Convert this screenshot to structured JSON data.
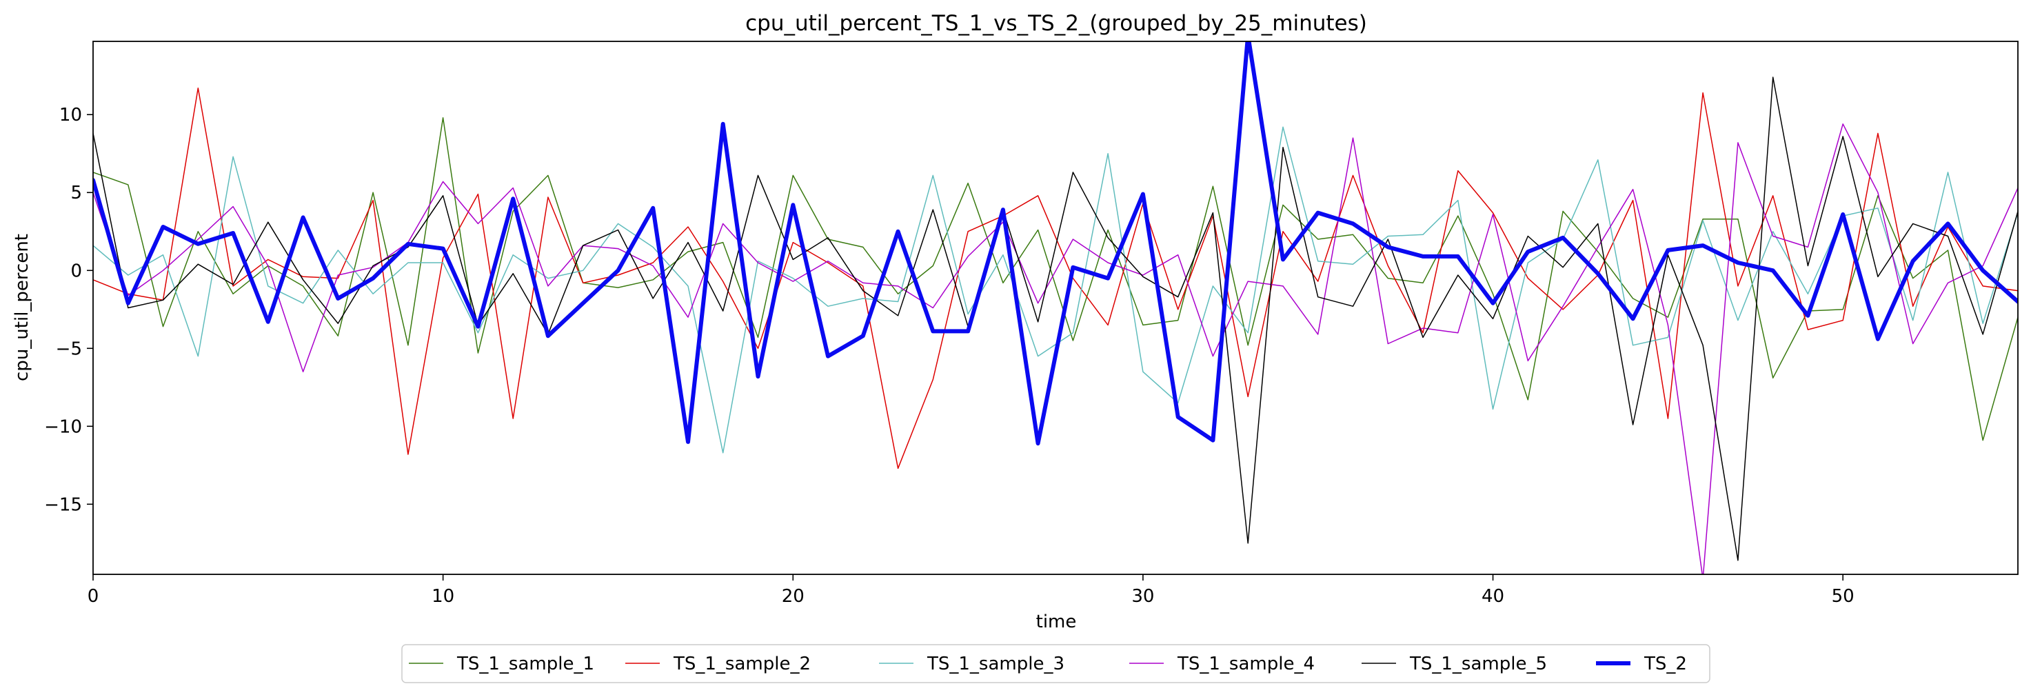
{
  "chart_data": {
    "type": "line",
    "title": "cpu_util_percent_TS_1_vs_TS_2_(grouped_by_25_minutes)",
    "xlabel": "time",
    "ylabel": "cpu_util_percent",
    "xlim": [
      0,
      55
    ],
    "ylim": [
      -19.5,
      14.7
    ],
    "xticks": [
      0,
      10,
      20,
      30,
      40,
      50
    ],
    "xtick_labels": [
      "0",
      "10",
      "20",
      "30",
      "40",
      "50"
    ],
    "yticks": [
      -15,
      -10,
      -5,
      0,
      5,
      10
    ],
    "ytick_labels": [
      "−15",
      "−10",
      "−5",
      "0",
      "5",
      "10"
    ],
    "grid": false,
    "legend": {
      "position": "bottom-center",
      "ncol": 6
    },
    "x": [
      0,
      1,
      2,
      3,
      4,
      5,
      6,
      7,
      8,
      9,
      10,
      11,
      12,
      13,
      14,
      15,
      16,
      17,
      18,
      19,
      20,
      21,
      22,
      23,
      24,
      25,
      26,
      27,
      28,
      29,
      30,
      31,
      32,
      33,
      34,
      35,
      36,
      37,
      38,
      39,
      40,
      41,
      42,
      43,
      44,
      45,
      46,
      47,
      48,
      49,
      50,
      51,
      52,
      53,
      54,
      55
    ],
    "series": [
      {
        "name": "TS_1_sample_1",
        "color": "#3a7a10",
        "width": 1.5,
        "values": [
          6.3,
          5.5,
          -3.6,
          2.5,
          -1.5,
          0.3,
          -1.0,
          -4.2,
          5.0,
          -4.8,
          9.8,
          -5.3,
          3.8,
          6.1,
          -0.8,
          -1.1,
          -0.6,
          1.2,
          1.8,
          -4.3,
          6.1,
          2.0,
          1.5,
          -1.5,
          0.3,
          5.6,
          -0.8,
          2.6,
          -4.5,
          2.6,
          -3.5,
          -3.2,
          5.4,
          -4.8,
          4.2,
          2.0,
          2.3,
          -0.5,
          -0.8,
          3.5,
          -1.5,
          -8.3,
          3.8,
          1.2,
          -1.8,
          -3.0,
          3.3,
          3.3,
          -6.9,
          -2.6,
          -2.5,
          4.8,
          -0.5,
          1.3,
          -10.9,
          -3.0
        ]
      },
      {
        "name": "TS_1_sample_2",
        "color": "#dd0000",
        "width": 1.5,
        "values": [
          -0.6,
          -1.5,
          -1.9,
          11.7,
          -1.0,
          0.7,
          -0.4,
          -0.5,
          4.5,
          -11.8,
          0.8,
          4.9,
          -9.5,
          4.7,
          -0.8,
          -0.3,
          0.5,
          2.8,
          -0.7,
          -5.0,
          1.8,
          0.5,
          -1.0,
          -12.7,
          -7.0,
          2.5,
          3.5,
          4.8,
          -0.5,
          -3.5,
          4.3,
          -2.5,
          3.5,
          -8.1,
          2.5,
          -0.7,
          6.1,
          0.3,
          -4.0,
          6.4,
          3.7,
          -0.5,
          -2.5,
          -0.3,
          4.5,
          -9.5,
          11.4,
          -1.0,
          4.8,
          -3.8,
          -3.2,
          8.8,
          -2.3,
          2.8,
          -1.0,
          -1.3
        ]
      },
      {
        "name": "TS_1_sample_3",
        "color": "#5fbcbc",
        "width": 1.5,
        "values": [
          1.6,
          -0.3,
          1.0,
          -5.5,
          7.3,
          -1.0,
          -2.1,
          1.3,
          -1.5,
          0.5,
          0.5,
          -4.0,
          1.0,
          -0.5,
          0.0,
          3.0,
          1.5,
          -1.0,
          -11.7,
          0.6,
          -0.5,
          -2.3,
          -1.8,
          -2.0,
          6.1,
          -2.8,
          1.0,
          -5.5,
          -4.0,
          7.5,
          -6.5,
          -8.5,
          -1.0,
          -4.0,
          9.2,
          0.6,
          0.4,
          2.2,
          2.3,
          4.5,
          -8.9,
          0.5,
          2.0,
          7.1,
          -4.8,
          -4.3,
          3.2,
          -3.2,
          2.5,
          -1.5,
          3.5,
          4.0,
          -3.2,
          6.3,
          -3.4,
          3.7
        ]
      },
      {
        "name": "TS_1_sample_4",
        "color": "#aa00cc",
        "width": 1.5,
        "values": [
          5.0,
          -1.6,
          0.0,
          2.0,
          4.1,
          0.3,
          -6.5,
          -0.3,
          0.2,
          1.8,
          5.7,
          3.0,
          5.3,
          -1.0,
          1.6,
          1.4,
          0.3,
          -3.0,
          3.0,
          0.5,
          -0.7,
          0.6,
          -0.8,
          -1.0,
          -2.4,
          0.9,
          3.1,
          -2.1,
          2.0,
          0.5,
          -0.3,
          1.0,
          -5.5,
          -0.7,
          -1.0,
          -4.1,
          8.5,
          -4.7,
          -3.7,
          -4.0,
          3.6,
          -5.8,
          -2.3,
          1.5,
          5.2,
          -3.5,
          -19.8,
          8.2,
          2.2,
          1.5,
          9.4,
          5.0,
          -4.7,
          -0.8,
          0.3,
          5.3
        ]
      },
      {
        "name": "TS_1_sample_5",
        "color": "#000000",
        "width": 1.5,
        "values": [
          8.8,
          -2.4,
          -1.9,
          0.4,
          -0.9,
          3.1,
          -0.6,
          -3.4,
          0.3,
          1.5,
          4.8,
          -3.5,
          -0.2,
          -4.1,
          1.6,
          2.6,
          -1.8,
          1.8,
          -2.6,
          6.1,
          0.7,
          2.1,
          -1.3,
          -2.9,
          3.9,
          -3.6,
          3.9,
          -3.3,
          6.3,
          2.1,
          -0.4,
          -1.7,
          3.7,
          -17.5,
          7.9,
          -1.7,
          -2.3,
          2.0,
          -4.3,
          -0.3,
          -3.1,
          2.2,
          0.2,
          3.0,
          -9.9,
          1.0,
          -4.8,
          -18.6,
          12.4,
          0.3,
          8.6,
          -0.4,
          3.0,
          2.2,
          -4.1,
          3.8
        ]
      },
      {
        "name": "TS_2",
        "color": "#0a0af0",
        "width": 6,
        "values": [
          5.8,
          -2.1,
          2.8,
          1.7,
          2.4,
          -3.3,
          3.4,
          -1.8,
          -0.5,
          1.7,
          1.4,
          -3.6,
          4.6,
          -4.2,
          -2.1,
          0.0,
          4.0,
          -11.0,
          9.4,
          -6.8,
          4.2,
          -5.5,
          -4.2,
          2.5,
          -3.9,
          -3.9,
          3.9,
          -11.1,
          0.2,
          -0.5,
          4.9,
          -9.4,
          -10.9,
          15.1,
          0.7,
          3.7,
          3.0,
          1.5,
          0.9,
          0.9,
          -2.1,
          1.2,
          2.1,
          -0.2,
          -3.1,
          1.3,
          1.6,
          0.5,
          0.0,
          -2.9,
          3.6,
          -4.4,
          0.6,
          3.0,
          0.0,
          -2.0
        ]
      }
    ]
  }
}
